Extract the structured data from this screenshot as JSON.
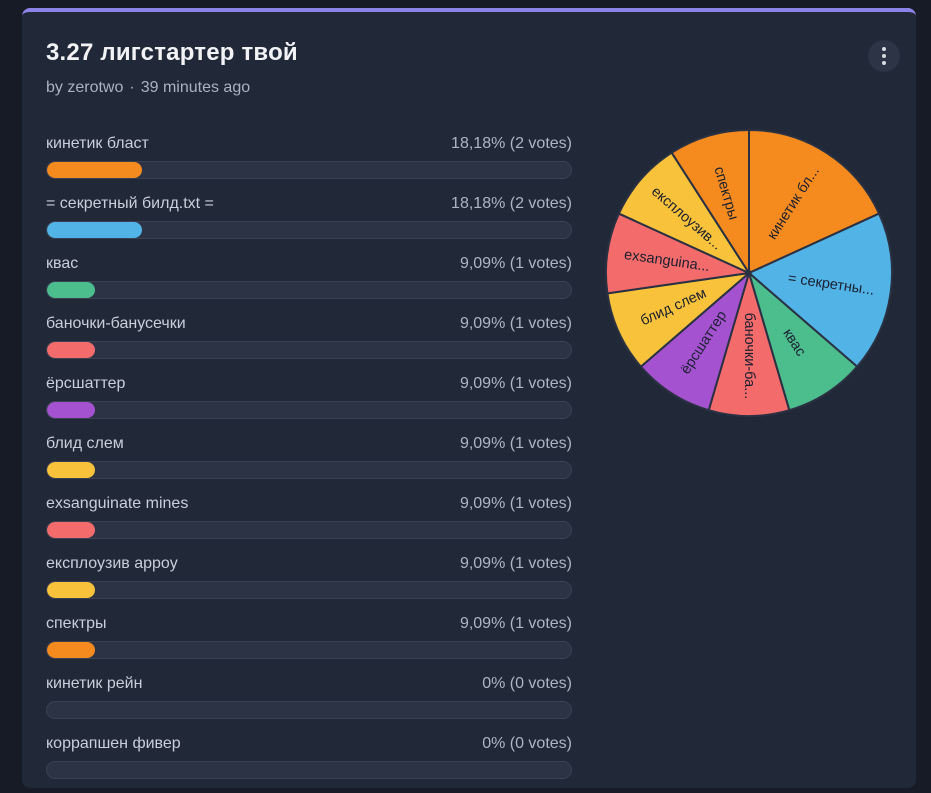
{
  "poll": {
    "title": "3.27 лигстартер твой",
    "author": "by zerotwo",
    "separator": "·",
    "time": "39 minutes ago"
  },
  "chart_data": {
    "type": "pie",
    "options": [
      {
        "label": "кинетик бласт",
        "pct_text": "18,18% (2 votes)",
        "pct": 18.18,
        "votes": 2,
        "color": "#f58b1f",
        "pie_label": "кинетик бл..."
      },
      {
        "label": "= секретный билд.txt =",
        "pct_text": "18,18% (2 votes)",
        "pct": 18.18,
        "votes": 2,
        "color": "#52b3e6",
        "pie_label": "= секретны..."
      },
      {
        "label": "квас",
        "pct_text": "9,09% (1 votes)",
        "pct": 9.09,
        "votes": 1,
        "color": "#4cbe8d",
        "pie_label": "квас"
      },
      {
        "label": "баночки-банусечки",
        "pct_text": "9,09% (1 votes)",
        "pct": 9.09,
        "votes": 1,
        "color": "#f36b6b",
        "pie_label": "баночки-ба..."
      },
      {
        "label": "ёрсшаттер",
        "pct_text": "9,09% (1 votes)",
        "pct": 9.09,
        "votes": 1,
        "color": "#a552d0",
        "pie_label": "ёрсшаттер"
      },
      {
        "label": "блид слем",
        "pct_text": "9,09% (1 votes)",
        "pct": 9.09,
        "votes": 1,
        "color": "#f8c23a",
        "pie_label": "блид слем"
      },
      {
        "label": "exsanguinate mines",
        "pct_text": "9,09% (1 votes)",
        "pct": 9.09,
        "votes": 1,
        "color": "#f36b6b",
        "pie_label": "exsanguina..."
      },
      {
        "label": "експлоузив аppoy",
        "pct_text": "9,09% (1 votes)",
        "pct": 9.09,
        "votes": 1,
        "color": "#f8c23a",
        "pie_label": "експлоузив..."
      },
      {
        "label": "спектры",
        "pct_text": "9,09% (1 votes)",
        "pct": 9.09,
        "votes": 1,
        "color": "#f58b1f",
        "pie_label": "спектры"
      },
      {
        "label": "кинетик рейн",
        "pct_text": "0% (0 votes)",
        "pct": 0,
        "votes": 0,
        "color": "#f58b1f",
        "pie_label": ""
      },
      {
        "label": "коррапшен фивер",
        "pct_text": "0% (0 votes)",
        "pct": 0,
        "votes": 0,
        "color": "#52b3e6",
        "pie_label": ""
      }
    ]
  }
}
